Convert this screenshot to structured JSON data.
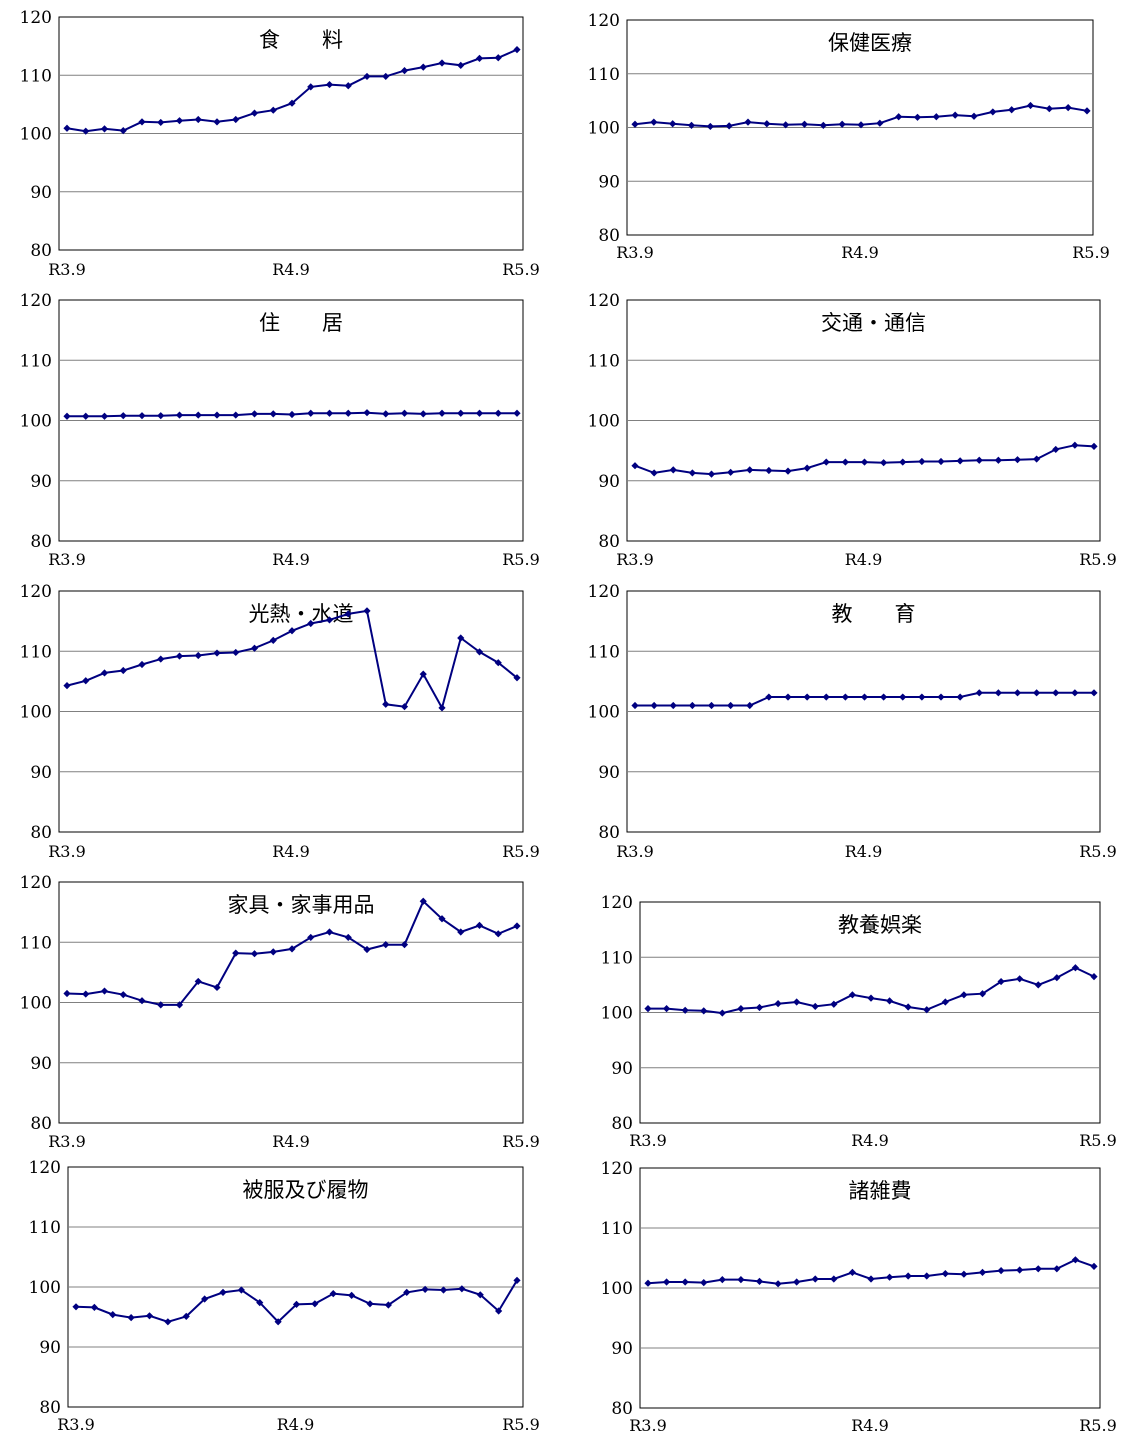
{
  "ylim": [
    80,
    120
  ],
  "yticks": [
    "80",
    "90",
    "100",
    "110",
    "120"
  ],
  "xticks": [
    "R3.9",
    "R4.9",
    "R5.9"
  ],
  "color": "#000080",
  "chart_data": [
    {
      "type": "line",
      "title": "食　　料",
      "ylim": [
        80,
        120
      ],
      "values": [
        100.9,
        100.4,
        100.8,
        100.5,
        102,
        101.9,
        102.2,
        102.4,
        102,
        102.4,
        103.5,
        104,
        105.2,
        108,
        108.4,
        108.2,
        109.8,
        109.8,
        110.8,
        111.4,
        112.1,
        111.7,
        112.9,
        113,
        114.4
      ]
    },
    {
      "type": "line",
      "title": "保健医療",
      "ylim": [
        80,
        120
      ],
      "values": [
        100.6,
        101,
        100.7,
        100.4,
        100.2,
        100.3,
        101,
        100.7,
        100.5,
        100.6,
        100.4,
        100.6,
        100.5,
        100.8,
        102,
        101.9,
        102,
        102.3,
        102.1,
        102.9,
        103.3,
        104.1,
        103.5,
        103.7,
        103.1
      ]
    },
    {
      "type": "line",
      "title": "住　　居",
      "ylim": [
        80,
        120
      ],
      "values": [
        100.7,
        100.7,
        100.7,
        100.8,
        100.8,
        100.8,
        100.9,
        100.9,
        100.9,
        100.9,
        101.1,
        101.1,
        101,
        101.2,
        101.2,
        101.2,
        101.3,
        101.1,
        101.2,
        101.1,
        101.2,
        101.2,
        101.2,
        101.2,
        101.2
      ]
    },
    {
      "type": "line",
      "title": "交通・通信",
      "ylim": [
        80,
        120
      ],
      "values": [
        92.5,
        91.3,
        91.8,
        91.3,
        91.1,
        91.4,
        91.8,
        91.7,
        91.6,
        92.1,
        93.1,
        93.1,
        93.1,
        93,
        93.1,
        93.2,
        93.2,
        93.3,
        93.4,
        93.4,
        93.5,
        93.6,
        95.2,
        95.9,
        95.7
      ]
    },
    {
      "type": "line",
      "title": "光熱・水道",
      "ylim": [
        80,
        120
      ],
      "values": [
        104.3,
        105.1,
        106.4,
        106.8,
        107.8,
        108.7,
        109.2,
        109.3,
        109.7,
        109.8,
        110.5,
        111.8,
        113.4,
        114.6,
        115.2,
        116.2,
        116.7,
        101.2,
        100.8,
        106.2,
        100.6,
        112.2,
        109.9,
        108.1,
        105.6
      ]
    },
    {
      "type": "line",
      "title": "教　　育",
      "ylim": [
        80,
        120
      ],
      "values": [
        101,
        101,
        101,
        101,
        101,
        101,
        101,
        102.4,
        102.4,
        102.4,
        102.4,
        102.4,
        102.4,
        102.4,
        102.4,
        102.4,
        102.4,
        102.4,
        103.1,
        103.1,
        103.1,
        103.1,
        103.1,
        103.1,
        103.1
      ]
    },
    {
      "type": "line",
      "title": "家具・家事用品",
      "ylim": [
        80,
        120
      ],
      "values": [
        101.5,
        101.4,
        101.9,
        101.3,
        100.3,
        99.6,
        99.6,
        103.5,
        102.5,
        108.2,
        108.1,
        108.4,
        108.9,
        110.8,
        111.7,
        110.8,
        108.8,
        109.6,
        109.6,
        116.8,
        113.9,
        111.7,
        112.8,
        111.4,
        112.7
      ]
    },
    {
      "type": "line",
      "title": "教養娯楽",
      "ylim": [
        80,
        120
      ],
      "values": [
        100.7,
        100.7,
        100.4,
        100.3,
        99.9,
        100.7,
        100.9,
        101.6,
        101.9,
        101.1,
        101.5,
        103.2,
        102.6,
        102.1,
        101,
        100.5,
        101.9,
        103.2,
        103.4,
        105.6,
        106.1,
        105,
        106.3,
        108.1,
        106.5
      ]
    },
    {
      "type": "line",
      "title": "被服及び履物",
      "ylim": [
        80,
        120
      ],
      "values": [
        96.7,
        96.6,
        95.4,
        94.9,
        95.2,
        94.2,
        95.1,
        98,
        99.1,
        99.5,
        97.4,
        94.2,
        97.1,
        97.2,
        98.9,
        98.6,
        97.2,
        97,
        99.1,
        99.6,
        99.5,
        99.7,
        98.7,
        96,
        101.1
      ]
    },
    {
      "type": "line",
      "title": "諸雑費",
      "ylim": [
        80,
        120
      ],
      "values": [
        100.8,
        101,
        101,
        100.9,
        101.4,
        101.4,
        101.1,
        100.7,
        101,
        101.5,
        101.5,
        102.6,
        101.5,
        101.8,
        102,
        102,
        102.4,
        102.3,
        102.6,
        102.9,
        103,
        103.2,
        103.2,
        104.7,
        103.6
      ]
    }
  ]
}
